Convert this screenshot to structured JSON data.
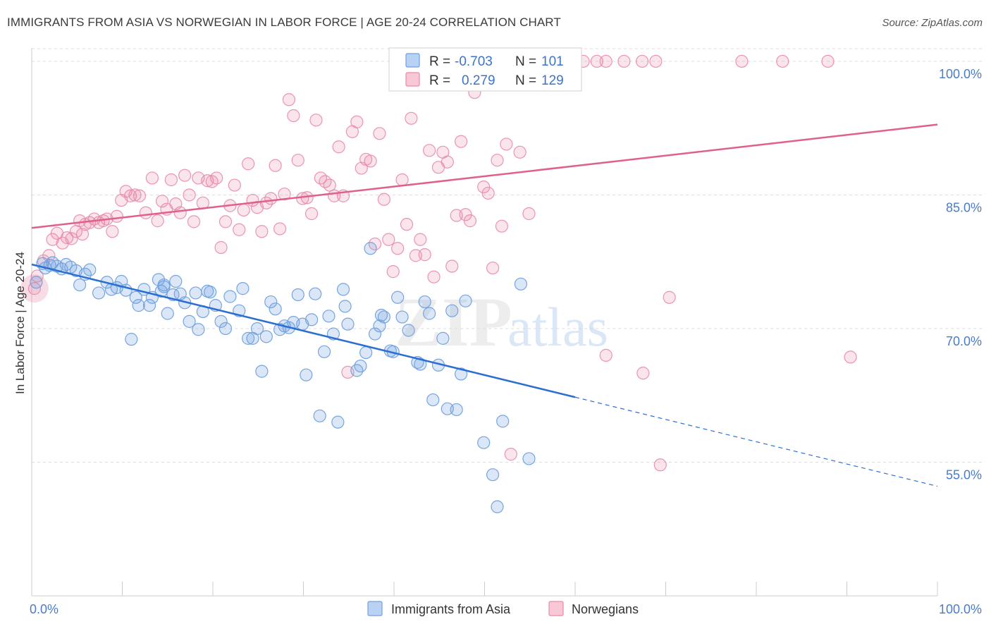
{
  "title": "IMMIGRANTS FROM ASIA VS NORWEGIAN IN LABOR FORCE | AGE 20-24 CORRELATION CHART",
  "source": "Source: ZipAtlas.com",
  "colors": {
    "blue": "#6fa0de",
    "blue_line": "#2a6fd1",
    "pink": "#e88aa8",
    "pink_line": "#e0608c",
    "grid": "#dddddd",
    "tick_text": "#4a7cc7"
  },
  "chart_data": {
    "type": "scatter",
    "title": "IMMIGRANTS FROM ASIA VS NORWEGIAN IN LABOR FORCE | AGE 20-24 CORRELATION CHART",
    "xlabel": "",
    "ylabel": "In Labor Force | Age 20-24",
    "xlim": [
      0,
      100
    ],
    "ylim": [
      40,
      101.5
    ],
    "x_tick_labels": [
      "0.0%",
      "100.0%"
    ],
    "y_ticks": [
      55,
      70,
      85,
      100
    ],
    "y_tick_labels": [
      "55.0%",
      "70.0%",
      "85.0%",
      "100.0%"
    ],
    "legend": {
      "rows": [
        {
          "r_label": "R =",
          "r_value": "-0.703",
          "n_label": "N =",
          "n_value": "101"
        },
        {
          "r_label": "R =",
          "r_value": "0.279",
          "n_label": "N =",
          "n_value": "129"
        }
      ]
    },
    "watermark": {
      "zip": "ZIP",
      "atlas": "atlas"
    },
    "series": [
      {
        "name": "Immigrants from Asia",
        "r": -0.703,
        "n": 101,
        "trend": {
          "x0": 0,
          "y0": 77.2,
          "x1": 60,
          "y1": 62.3,
          "dash_x1": 100,
          "dash_y1": 52.3
        },
        "points": [
          [
            0.5,
            75.2
          ],
          [
            1.2,
            77.3
          ],
          [
            1.5,
            76.8
          ],
          [
            2.0,
            77.1
          ],
          [
            2.3,
            77.4
          ],
          [
            2.8,
            77.0
          ],
          [
            3.3,
            76.7
          ],
          [
            3.8,
            77.2
          ],
          [
            4.3,
            76.9
          ],
          [
            4.9,
            76.5
          ],
          [
            5.9,
            76.1
          ],
          [
            5.3,
            74.9
          ],
          [
            6.4,
            76.6
          ],
          [
            7.4,
            74.0
          ],
          [
            8.3,
            75.2
          ],
          [
            8.8,
            74.4
          ],
          [
            9.4,
            74.6
          ],
          [
            9.9,
            75.3
          ],
          [
            10.4,
            74.3
          ],
          [
            11.0,
            68.8
          ],
          [
            11.5,
            73.5
          ],
          [
            11.8,
            72.6
          ],
          [
            12.4,
            74.4
          ],
          [
            13.0,
            72.6
          ],
          [
            13.3,
            73.5
          ],
          [
            14.0,
            75.5
          ],
          [
            14.3,
            74.2
          ],
          [
            14.6,
            74.7
          ],
          [
            15.0,
            71.7
          ],
          [
            15.6,
            73.8
          ],
          [
            15.9,
            75.3
          ],
          [
            16.4,
            73.9
          ],
          [
            16.9,
            72.9
          ],
          [
            17.4,
            70.8
          ],
          [
            18.1,
            74.0
          ],
          [
            18.4,
            69.9
          ],
          [
            18.9,
            71.9
          ],
          [
            19.4,
            74.2
          ],
          [
            19.7,
            74.1
          ],
          [
            20.3,
            72.6
          ],
          [
            20.9,
            70.8
          ],
          [
            21.4,
            70.0
          ],
          [
            21.9,
            73.6
          ],
          [
            22.9,
            72.0
          ],
          [
            23.3,
            74.5
          ],
          [
            23.9,
            68.9
          ],
          [
            24.4,
            68.9
          ],
          [
            24.9,
            70.0
          ],
          [
            25.4,
            65.2
          ],
          [
            25.9,
            69.1
          ],
          [
            26.4,
            73.0
          ],
          [
            26.9,
            72.2
          ],
          [
            27.4,
            69.9
          ],
          [
            27.9,
            70.3
          ],
          [
            28.4,
            70.1
          ],
          [
            28.9,
            70.7
          ],
          [
            29.4,
            73.8
          ],
          [
            29.9,
            70.5
          ],
          [
            30.3,
            64.8
          ],
          [
            30.9,
            71.0
          ],
          [
            31.3,
            73.9
          ],
          [
            31.8,
            60.2
          ],
          [
            32.3,
            67.4
          ],
          [
            32.8,
            71.4
          ],
          [
            33.3,
            69.4
          ],
          [
            33.8,
            59.5
          ],
          [
            34.4,
            74.4
          ],
          [
            34.6,
            72.5
          ],
          [
            34.9,
            70.5
          ],
          [
            35.9,
            65.3
          ],
          [
            36.3,
            65.8
          ],
          [
            36.9,
            67.3
          ],
          [
            37.4,
            79.0
          ],
          [
            37.9,
            69.4
          ],
          [
            38.4,
            70.3
          ],
          [
            38.6,
            71.5
          ],
          [
            38.9,
            71.3
          ],
          [
            39.6,
            67.5
          ],
          [
            39.9,
            67.4
          ],
          [
            40.4,
            73.5
          ],
          [
            40.9,
            71.3
          ],
          [
            41.6,
            69.8
          ],
          [
            42.6,
            66.2
          ],
          [
            42.9,
            66.0
          ],
          [
            43.4,
            73.0
          ],
          [
            43.9,
            71.7
          ],
          [
            44.3,
            62.0
          ],
          [
            44.9,
            65.9
          ],
          [
            45.4,
            68.9
          ],
          [
            45.9,
            61.0
          ],
          [
            46.4,
            72.0
          ],
          [
            46.9,
            60.9
          ],
          [
            47.4,
            64.9
          ],
          [
            47.9,
            73.1
          ],
          [
            49.9,
            57.2
          ],
          [
            50.9,
            53.6
          ],
          [
            51.4,
            50.0
          ],
          [
            52.0,
            59.6
          ],
          [
            54.0,
            75.0
          ],
          [
            54.9,
            55.4
          ],
          [
            14.6,
            74.9
          ]
        ]
      },
      {
        "name": "Norwegians",
        "r": 0.279,
        "n": 129,
        "trend": {
          "x0": 0,
          "y0": 81.3,
          "x1": 100,
          "y1": 92.9
        },
        "points": [
          [
            0.3,
            74.5
          ],
          [
            0.6,
            75.9
          ],
          [
            1.3,
            77.6
          ],
          [
            1.9,
            78.2
          ],
          [
            2.3,
            80.0
          ],
          [
            2.8,
            80.7
          ],
          [
            3.4,
            79.6
          ],
          [
            3.9,
            80.2
          ],
          [
            4.4,
            80.1
          ],
          [
            4.9,
            80.9
          ],
          [
            5.3,
            82.1
          ],
          [
            5.6,
            80.6
          ],
          [
            5.9,
            81.7
          ],
          [
            6.4,
            81.9
          ],
          [
            6.9,
            82.3
          ],
          [
            7.4,
            81.9
          ],
          [
            7.9,
            82.1
          ],
          [
            8.3,
            82.3
          ],
          [
            8.9,
            80.9
          ],
          [
            9.4,
            82.6
          ],
          [
            9.9,
            84.4
          ],
          [
            10.4,
            85.4
          ],
          [
            10.9,
            84.9
          ],
          [
            11.4,
            85.0
          ],
          [
            11.9,
            84.9
          ],
          [
            12.6,
            83.0
          ],
          [
            13.3,
            86.9
          ],
          [
            13.9,
            82.1
          ],
          [
            14.4,
            84.3
          ],
          [
            14.9,
            83.4
          ],
          [
            15.4,
            86.7
          ],
          [
            15.9,
            84.0
          ],
          [
            16.4,
            83.0
          ],
          [
            16.9,
            87.2
          ],
          [
            17.4,
            85.0
          ],
          [
            17.9,
            82.0
          ],
          [
            18.4,
            86.9
          ],
          [
            18.9,
            84.1
          ],
          [
            19.4,
            86.6
          ],
          [
            19.9,
            86.5
          ],
          [
            20.4,
            86.9
          ],
          [
            20.9,
            79.1
          ],
          [
            21.4,
            82.0
          ],
          [
            21.9,
            83.8
          ],
          [
            22.4,
            86.1
          ],
          [
            22.9,
            81.1
          ],
          [
            23.4,
            83.3
          ],
          [
            23.9,
            88.5
          ],
          [
            24.4,
            84.4
          ],
          [
            24.9,
            83.6
          ],
          [
            25.4,
            80.9
          ],
          [
            25.9,
            84.1
          ],
          [
            26.4,
            84.6
          ],
          [
            26.9,
            88.3
          ],
          [
            27.4,
            81.2
          ],
          [
            27.9,
            85.1
          ],
          [
            28.4,
            95.7
          ],
          [
            28.9,
            93.9
          ],
          [
            29.4,
            88.9
          ],
          [
            29.9,
            84.6
          ],
          [
            30.4,
            84.7
          ],
          [
            30.9,
            82.9
          ],
          [
            31.4,
            93.4
          ],
          [
            31.9,
            86.9
          ],
          [
            32.4,
            86.5
          ],
          [
            32.9,
            86.1
          ],
          [
            33.4,
            84.9
          ],
          [
            33.9,
            90.4
          ],
          [
            34.4,
            84.9
          ],
          [
            34.9,
            65.1
          ],
          [
            35.4,
            92.1
          ],
          [
            35.9,
            93.2
          ],
          [
            36.4,
            88.0
          ],
          [
            36.9,
            89.0
          ],
          [
            37.4,
            88.8
          ],
          [
            37.9,
            79.5
          ],
          [
            38.4,
            91.9
          ],
          [
            38.9,
            84.5
          ],
          [
            39.4,
            80.0
          ],
          [
            39.9,
            76.4
          ],
          [
            40.4,
            79.0
          ],
          [
            40.9,
            86.7
          ],
          [
            41.4,
            81.7
          ],
          [
            41.9,
            93.6
          ],
          [
            42.4,
            78.2
          ],
          [
            42.9,
            80.0
          ],
          [
            43.4,
            78.3
          ],
          [
            43.9,
            90.0
          ],
          [
            44.4,
            75.8
          ],
          [
            44.9,
            88.1
          ],
          [
            45.4,
            89.8
          ],
          [
            45.9,
            88.7
          ],
          [
            46.4,
            77.0
          ],
          [
            46.9,
            82.7
          ],
          [
            47.4,
            91.0
          ],
          [
            47.9,
            82.8
          ],
          [
            48.4,
            82.1
          ],
          [
            48.9,
            96.5
          ],
          [
            49.9,
            85.9
          ],
          [
            50.4,
            85.2
          ],
          [
            50.9,
            76.8
          ],
          [
            51.4,
            88.9
          ],
          [
            51.9,
            81.5
          ],
          [
            52.4,
            90.7
          ],
          [
            52.9,
            55.9
          ],
          [
            53.9,
            89.8
          ],
          [
            54.9,
            82.9
          ],
          [
            50.4,
            100.0
          ],
          [
            50.9,
            100.0
          ],
          [
            51.9,
            100.0
          ],
          [
            55.4,
            100.0
          ],
          [
            59.9,
            100.0
          ],
          [
            62.4,
            100.0
          ],
          [
            63.4,
            100.0
          ],
          [
            65.4,
            100.0
          ],
          [
            67.4,
            100.0
          ],
          [
            68.9,
            100.0
          ],
          [
            78.4,
            100.0
          ],
          [
            82.9,
            100.0
          ],
          [
            87.9,
            100.0
          ],
          [
            63.4,
            67.0
          ],
          [
            67.5,
            65.0
          ],
          [
            69.4,
            54.7
          ],
          [
            70.4,
            73.5
          ],
          [
            90.4,
            66.8
          ],
          [
            46.9,
            100.0
          ],
          [
            60.9,
            100.0
          ]
        ]
      }
    ]
  }
}
